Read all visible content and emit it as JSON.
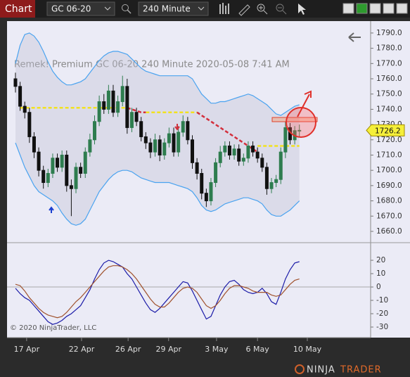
{
  "toolbar": {
    "title": "Chart",
    "instrument": "GC 06-20",
    "period": "240 Minute"
  },
  "copyright": "© 2020 NinjaTrader, LLC",
  "logo": {
    "first": "NINJA",
    "second": "TRADER"
  },
  "chart_data": [
    {
      "type": "candlestick",
      "subtitle": "Remek!  Premium  GC 06-20  240 Minute  2020-05-08 7:41 AM",
      "up_color": "#2e7d4f",
      "down_color": "#111111",
      "open": [
        1760,
        1755,
        1742,
        1738,
        1722,
        1712,
        1700,
        1692,
        1698,
        1708,
        1702,
        1710,
        1690,
        1688,
        1702,
        1698,
        1712,
        1720,
        1732,
        1745,
        1740,
        1752,
        1738,
        1745,
        1755,
        1728,
        1738,
        1732,
        1722,
        1718,
        1712,
        1720,
        1710,
        1718,
        1724,
        1712,
        1725,
        1732,
        1720,
        1705,
        1698,
        1685,
        1680,
        1692,
        1705,
        1712,
        1716,
        1710,
        1714,
        1706,
        1708,
        1716,
        1712,
        1708,
        1702,
        1688,
        1692,
        1694,
        1712,
        1728,
        1720,
        1726
      ],
      "high": [
        1764,
        1758,
        1745,
        1741,
        1725,
        1715,
        1703,
        1701,
        1711,
        1711,
        1713,
        1713,
        1694,
        1705,
        1705,
        1715,
        1724,
        1736,
        1749,
        1750,
        1756,
        1756,
        1749,
        1762,
        1760,
        1741,
        1741,
        1735,
        1725,
        1721,
        1724,
        1723,
        1721,
        1728,
        1728,
        1729,
        1736,
        1735,
        1723,
        1708,
        1701,
        1688,
        1695,
        1708,
        1716,
        1719,
        1719,
        1717,
        1717,
        1711,
        1719,
        1719,
        1715,
        1711,
        1705,
        1695,
        1697,
        1715,
        1732,
        1731,
        1729,
        1730
      ],
      "low": [
        1751,
        1739,
        1734,
        1718,
        1708,
        1696,
        1688,
        1689,
        1695,
        1699,
        1699,
        1686,
        1670,
        1685,
        1695,
        1695,
        1709,
        1717,
        1729,
        1737,
        1737,
        1735,
        1735,
        1742,
        1724,
        1725,
        1729,
        1719,
        1714,
        1708,
        1709,
        1706,
        1707,
        1715,
        1709,
        1709,
        1722,
        1717,
        1701,
        1694,
        1681,
        1676,
        1677,
        1689,
        1702,
        1709,
        1707,
        1707,
        1703,
        1703,
        1705,
        1709,
        1705,
        1699,
        1684,
        1685,
        1689,
        1691,
        1708,
        1717,
        1717,
        1722
      ],
      "close": [
        1755,
        1742,
        1738,
        1722,
        1712,
        1700,
        1692,
        1698,
        1708,
        1702,
        1710,
        1690,
        1688,
        1702,
        1698,
        1712,
        1720,
        1732,
        1745,
        1740,
        1752,
        1738,
        1745,
        1755,
        1728,
        1738,
        1732,
        1722,
        1718,
        1712,
        1720,
        1710,
        1718,
        1724,
        1712,
        1725,
        1732,
        1720,
        1705,
        1698,
        1685,
        1680,
        1692,
        1705,
        1712,
        1716,
        1710,
        1714,
        1706,
        1708,
        1716,
        1712,
        1708,
        1702,
        1688,
        1692,
        1694,
        1712,
        1728,
        1720,
        1726,
        1726.2
      ],
      "series": [
        {
          "color": "#4aa3f0",
          "values": [
            1770,
            1782,
            1789,
            1790,
            1788,
            1784,
            1778,
            1771,
            1765,
            1761,
            1758,
            1756,
            1756,
            1757,
            1758,
            1760,
            1764,
            1768,
            1772,
            1775,
            1777,
            1778,
            1778,
            1777,
            1776,
            1773,
            1770,
            1767,
            1765,
            1764,
            1763,
            1762,
            1762,
            1762,
            1762,
            1762,
            1762,
            1762,
            1760,
            1755,
            1750,
            1747,
            1744,
            1744,
            1745,
            1745,
            1746,
            1747,
            1748,
            1749,
            1750,
            1749,
            1747,
            1745,
            1743,
            1740,
            1737,
            1736,
            1738,
            1740,
            1742,
            1743
          ]
        },
        {
          "color": "#4aa3f0",
          "values": [
            1718,
            1710,
            1702,
            1696,
            1690,
            1686,
            1684,
            1682,
            1680,
            1677,
            1672,
            1668,
            1665,
            1664,
            1665,
            1668,
            1674,
            1680,
            1686,
            1690,
            1694,
            1697,
            1699,
            1700,
            1700,
            1699,
            1697,
            1695,
            1694,
            1693,
            1692,
            1692,
            1692,
            1692,
            1691,
            1690,
            1689,
            1688,
            1686,
            1682,
            1677,
            1674,
            1673,
            1674,
            1676,
            1678,
            1679,
            1680,
            1681,
            1682,
            1682,
            1681,
            1680,
            1678,
            1674,
            1671,
            1670,
            1670,
            1672,
            1674,
            1677,
            1680
          ]
        },
        {
          "color": "#f2e21f",
          "dashed": true,
          "values": [
            null,
            1741,
            1741,
            1741,
            1741,
            1741,
            1741,
            1741,
            1741,
            1741,
            1741,
            1741,
            1741,
            1741,
            1741,
            1741,
            1741,
            1741,
            1741,
            1741,
            1741,
            1741,
            1741,
            1741,
            1741,
            null,
            null,
            null,
            1738,
            1738,
            1738,
            1738,
            1738,
            1738,
            1738,
            1738,
            1738,
            1738,
            1738,
            1738,
            null,
            null,
            null,
            null,
            null,
            null,
            null,
            null,
            null,
            null,
            null,
            null,
            1716,
            1716,
            1716,
            1716,
            1716,
            1716,
            1716,
            1716,
            1716,
            1716
          ]
        },
        {
          "color": "#d32f3c",
          "dashed": true,
          "values": [
            null,
            null,
            null,
            null,
            null,
            null,
            null,
            null,
            null,
            null,
            null,
            null,
            null,
            null,
            null,
            null,
            null,
            null,
            null,
            null,
            null,
            null,
            null,
            null,
            1741,
            1740,
            1739,
            1738,
            1738,
            null,
            null,
            null,
            null,
            null,
            null,
            null,
            null,
            null,
            null,
            1738,
            1736,
            1734,
            1732,
            1730,
            1728,
            1726,
            1724,
            1722,
            1720,
            1718,
            1716,
            1714,
            1712,
            null,
            null,
            null,
            null,
            null,
            null,
            null,
            null,
            null
          ]
        }
      ],
      "ylim": [
        1652.6,
        1797.8
      ],
      "yticks": [
        {
          "value": 1660,
          "label": "1660.0"
        },
        {
          "value": 1670,
          "label": "1670.0"
        },
        {
          "value": 1680,
          "label": "1680.0"
        },
        {
          "value": 1690,
          "label": "1690.0"
        },
        {
          "value": 1700,
          "label": "1700.0"
        },
        {
          "value": 1710,
          "label": "1710.0"
        },
        {
          "value": 1720,
          "label": "1720.0"
        },
        {
          "value": 1730,
          "label": "1730.0"
        },
        {
          "value": 1740,
          "label": "1740.0"
        },
        {
          "value": 1750,
          "label": "1750.0"
        },
        {
          "value": 1760,
          "label": "1760.0"
        },
        {
          "value": 1770,
          "label": "1770.0"
        },
        {
          "value": 1780,
          "label": "1780.0"
        },
        {
          "value": 1790,
          "label": "1790.0"
        }
      ],
      "xlim": [
        -1.81,
        76.3
      ],
      "xticks": [
        {
          "value": 2.4,
          "label": "17 Apr"
        },
        {
          "value": 14.2,
          "label": "22 Apr"
        },
        {
          "value": 24.2,
          "label": "26 Apr"
        },
        {
          "value": 32.9,
          "label": "29 Apr"
        },
        {
          "value": 43.2,
          "label": "3 May"
        },
        {
          "value": 52.0,
          "label": "6 May"
        },
        {
          "value": 62.7,
          "label": "10 May"
        }
      ]
    },
    {
      "type": "line",
      "zero_line": true,
      "series": [
        {
          "color": "#1c1ca8",
          "values": [
            -1,
            -5,
            -8,
            -10,
            -14,
            -18,
            -22,
            -26,
            -28,
            -27,
            -25,
            -22,
            -20,
            -17,
            -14,
            -8,
            -2,
            6,
            13,
            18,
            20,
            19,
            17,
            15,
            10,
            6,
            0,
            -6,
            -12,
            -17,
            -19,
            -16,
            -12,
            -8,
            -4,
            0,
            4,
            3,
            -3,
            -10,
            -17,
            -24,
            -22,
            -14,
            -6,
            0,
            4,
            5,
            2,
            -2,
            -4,
            -5,
            -4,
            -1,
            -5,
            -11,
            -13,
            -4,
            6,
            13,
            18,
            19
          ]
        },
        {
          "color": "#a0522d",
          "values": [
            2,
            1,
            -3,
            -8,
            -12,
            -16,
            -19,
            -21,
            -22,
            -23,
            -22,
            -19,
            -15,
            -11,
            -8,
            -4,
            0,
            4,
            8,
            12,
            15,
            16,
            16,
            15,
            13,
            10,
            6,
            1,
            -4,
            -9,
            -13,
            -15,
            -15,
            -12,
            -8,
            -4,
            -1,
            0,
            -1,
            -4,
            -9,
            -14,
            -16,
            -14,
            -10,
            -5,
            -1,
            1,
            1,
            0,
            -1,
            -3,
            -4,
            -4,
            -4,
            -6,
            -7,
            -6,
            -2,
            2,
            5,
            6
          ]
        }
      ],
      "ylim": [
        -37.9,
        33.2
      ],
      "yticks": [
        20,
        10,
        0,
        -10,
        -20,
        -30
      ]
    }
  ]
}
